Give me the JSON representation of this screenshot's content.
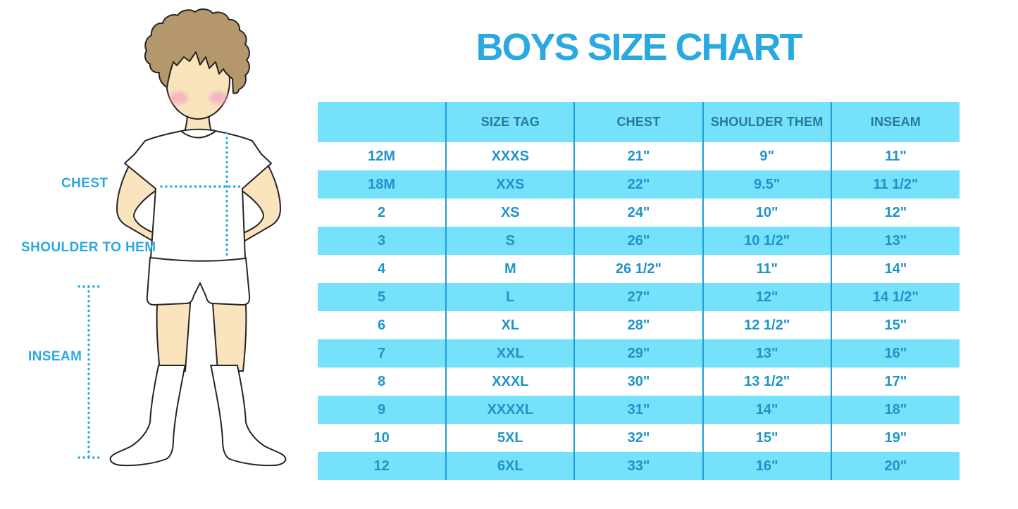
{
  "title": "BOYS SIZE CHART",
  "figure": {
    "labels": {
      "chest": "CHEST",
      "shoulder_to_hem": "SHOULDER TO HEM",
      "inseam": "INSEAM"
    }
  },
  "chart_data": {
    "type": "table",
    "title": "BOYS SIZE CHART",
    "columns": [
      "",
      "SIZE TAG",
      "CHEST",
      "SHOULDER THEM",
      "INSEAM"
    ],
    "rows": [
      [
        "12M",
        "XXXS",
        "21\"",
        "9\"",
        "11\""
      ],
      [
        "18M",
        "XXS",
        "22\"",
        "9.5\"",
        "11 1/2\""
      ],
      [
        "2",
        "XS",
        "24\"",
        "10\"",
        "12\""
      ],
      [
        "3",
        "S",
        "26\"",
        "10 1/2\"",
        "13\""
      ],
      [
        "4",
        "M",
        "26 1/2\"",
        "11\"",
        "14\""
      ],
      [
        "5",
        "L",
        "27\"",
        "12\"",
        "14 1/2\""
      ],
      [
        "6",
        "XL",
        "28\"",
        "12 1/2\"",
        "15\""
      ],
      [
        "7",
        "XXL",
        "29\"",
        "13\"",
        "16\""
      ],
      [
        "8",
        "XXXL",
        "30\"",
        "13 1/2\"",
        "17\""
      ],
      [
        "9",
        "XXXXL",
        "31\"",
        "14\"",
        "18\""
      ],
      [
        "10",
        "5XL",
        "32\"",
        "15\"",
        "19\""
      ],
      [
        "12",
        "6XL",
        "33\"",
        "16\"",
        "20\""
      ]
    ]
  },
  "colors": {
    "accent": "#29A9E0",
    "row_blue": "#76E1FB",
    "divider": "#219DD6",
    "header_text": "#27789F",
    "cell_text": "#1E93C9",
    "skin": "#F9E4BD",
    "hair": "#B5976C",
    "blush": "#F2A9BF",
    "outline": "#252525"
  }
}
